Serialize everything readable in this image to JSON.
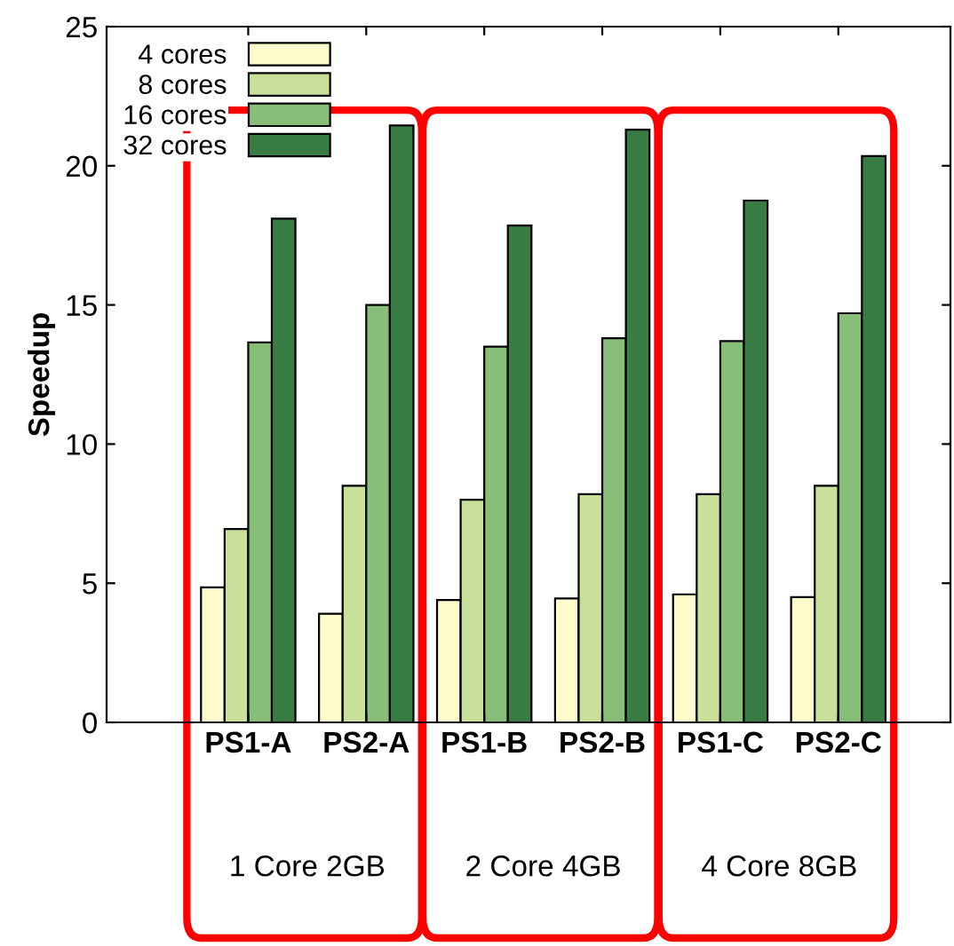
{
  "chart_data": {
    "type": "bar",
    "ylabel": "Speedup",
    "categories": [
      "PS1-A",
      "PS2-A",
      "PS1-B",
      "PS2-B",
      "PS1-C",
      "PS2-C"
    ],
    "series": [
      {
        "name": "4 cores",
        "color": "#fffccc",
        "values": [
          4.85,
          3.9,
          4.4,
          4.45,
          4.6,
          4.5
        ]
      },
      {
        "name": "8 cores",
        "color": "#c9e09a",
        "values": [
          6.95,
          8.5,
          8.0,
          8.2,
          8.2,
          8.5
        ]
      },
      {
        "name": "16 cores",
        "color": "#88bf78",
        "values": [
          13.65,
          15.0,
          13.5,
          13.8,
          13.7,
          14.7
        ]
      },
      {
        "name": "32 cores",
        "color": "#3a7d44",
        "values": [
          18.1,
          21.45,
          17.85,
          21.3,
          18.75,
          20.35
        ]
      }
    ],
    "ylim": [
      0,
      25
    ],
    "yticks": [
      0,
      5,
      10,
      15,
      20,
      25
    ],
    "grid": false,
    "legend": "top left",
    "annotations": [
      "1 Core 2GB",
      "2 Core 4GB",
      "4 Core 8GB"
    ]
  }
}
